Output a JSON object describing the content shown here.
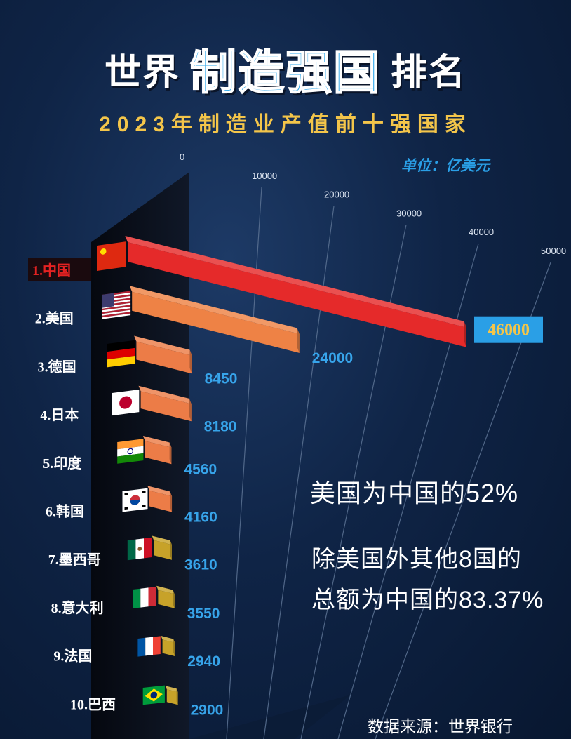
{
  "header": {
    "title_left": "世界",
    "title_highlight": "制造强国",
    "title_right": "排名",
    "subtitle": "2023年制造业产值前十强国家",
    "unit": "单位：亿美元"
  },
  "chart_data": {
    "type": "bar",
    "orientation": "horizontal-3d",
    "categories": [
      "1.中国",
      "2.美国",
      "3.德国",
      "4.日本",
      "5.印度",
      "6.韩国",
      "7.墨西哥",
      "8.意大利",
      "9.法国",
      "10.巴西"
    ],
    "values": [
      46000,
      24000,
      8450,
      8180,
      4560,
      4160,
      3610,
      3550,
      2940,
      2900
    ],
    "value_labels": [
      "46000",
      "24000",
      "8450",
      "8180",
      "4560",
      "4160",
      "3610",
      "3550",
      "2940",
      "2900"
    ],
    "xlim": [
      0,
      50000
    ],
    "x_ticks": [
      0,
      10000,
      20000,
      30000,
      40000,
      50000
    ],
    "x_tick_labels": [
      "0",
      "10000",
      "20000",
      "30000",
      "40000",
      "50000"
    ],
    "bar_colors": [
      "#e52a2a",
      "#ee8245",
      "#ec7c47",
      "#ec7c47",
      "#ec7c47",
      "#ec7c47",
      "#c7a229",
      "#c7a229",
      "#c7a229",
      "#c7a229"
    ],
    "flags": [
      "china-flag-icon",
      "usa-flag-icon",
      "germany-flag-icon",
      "japan-flag-icon",
      "india-flag-icon",
      "south-korea-flag-icon",
      "mexico-flag-icon",
      "italy-flag-icon",
      "france-flag-icon",
      "brazil-flag-icon"
    ],
    "grid": true
  },
  "notes": {
    "line1": "美国为中国的52%",
    "line2": "除美国外其他8国的",
    "line3": "总额为中国的83.37%"
  },
  "source": "数据来源：世界银行"
}
